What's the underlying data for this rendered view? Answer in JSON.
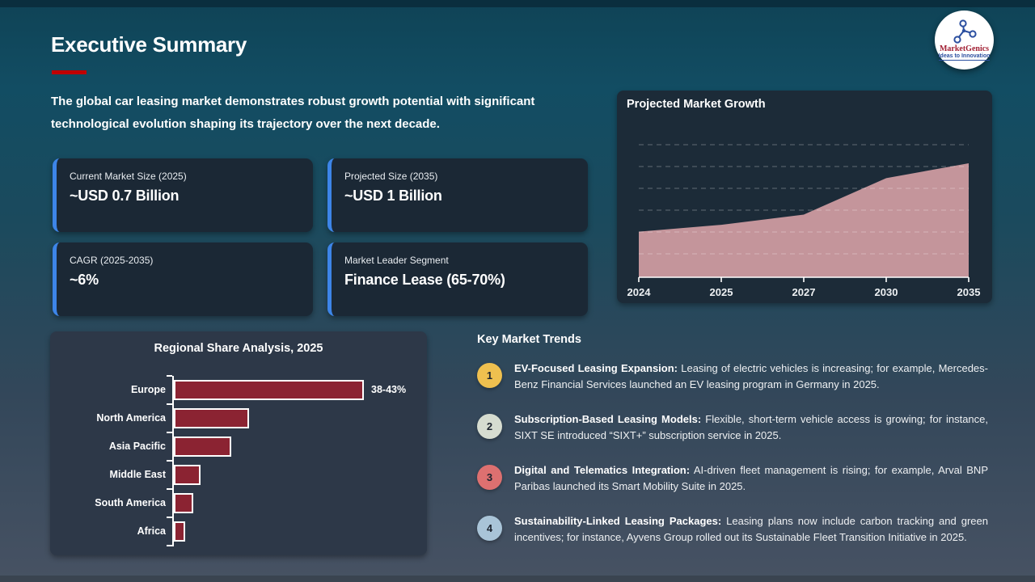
{
  "slide": {
    "title": "Executive Summary",
    "intro": "The global car leasing market demonstrates robust growth potential with significant technological evolution shaping its trajectory over the next decade."
  },
  "logo": {
    "brand": "MarketGenics",
    "tagline": "Ideas to Innovation"
  },
  "colors": {
    "title_rule_red": "#C00000",
    "stat_card_accent_blue": "#3D85E8",
    "area_fill": "#C4959B",
    "bar_fill": "#8B2332",
    "badge_colors": [
      "#EFC04F",
      "#D6DCD0",
      "#DD7070",
      "#A9C4D8"
    ]
  },
  "stat_cards": [
    {
      "label": "Current Market Size (2025)",
      "value": "~USD 0.7 Billion"
    },
    {
      "label": "Projected Size (2035)",
      "value": "~USD 1 Billion"
    },
    {
      "label": "CAGR (2025-2035)",
      "value": "~6%"
    },
    {
      "label": "Market Leader Segment",
      "value": "Finance Lease (65-70%)"
    }
  ],
  "trends": {
    "heading": "Key Market Trends",
    "items": [
      {
        "number": "1",
        "lead": "EV-Focused Leasing Expansion:",
        "body": "Leasing of electric vehicles is increasing; for example, Mercedes-Benz Financial Services launched an EV leasing program in Germany in 2025."
      },
      {
        "number": "2",
        "lead": "Subscription-Based Leasing Models:",
        "body": "Flexible, short-term vehicle access is growing; for instance, SIXT SE introduced “SIXT+” subscription service in 2025."
      },
      {
        "number": "3",
        "lead": "Digital and Telematics Integration:",
        "body": "AI-driven fleet management is rising; for example, Arval BNP Paribas launched its Smart Mobility Suite in 2025."
      },
      {
        "number": "4",
        "lead": "Sustainability-Linked Leasing Packages:",
        "body": "Leasing plans now include carbon tracking and green incentives; for instance, Ayvens Group rolled out its Sustainable Fleet Transition Initiative in 2025."
      }
    ]
  },
  "chart_data": [
    {
      "type": "area",
      "title": "Projected Market Growth",
      "x": [
        "2024",
        "2025",
        "2027",
        "2030",
        "2035"
      ],
      "values": [
        0.4,
        0.46,
        0.55,
        0.87,
        1.0
      ],
      "units": "relative height (no y-axis labels shown)",
      "grid": "horizontal dashed",
      "legend": "none",
      "fill_color": "#C4959B"
    },
    {
      "type": "bar",
      "orientation": "horizontal",
      "title": "Regional Share Analysis, 2025",
      "categories": [
        "Europe",
        "North America",
        "Asia Pacific",
        "Middle East",
        "South America",
        "Africa"
      ],
      "values": [
        40.5,
        16.0,
        12.2,
        5.7,
        4.1,
        2.4
      ],
      "value_units": "% share (approx, read from bar lengths)",
      "annotations": [
        {
          "category": "Europe",
          "label": "38-43%"
        }
      ],
      "xlim": [
        0,
        49.5
      ],
      "bar_color": "#8B2332",
      "legend": "none"
    }
  ]
}
